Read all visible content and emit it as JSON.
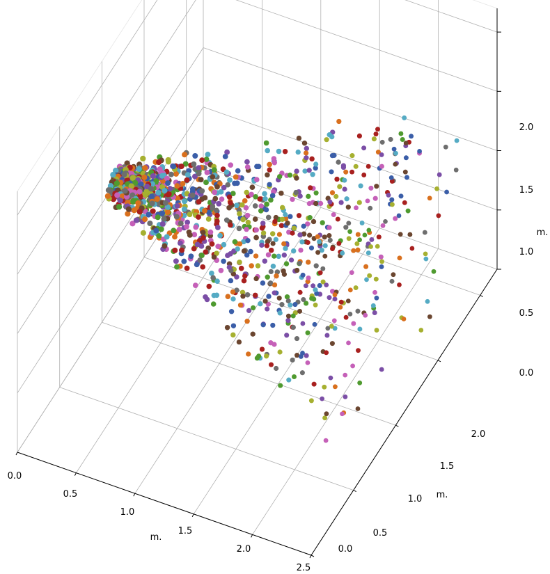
{
  "chart_data": {
    "type": "scatter",
    "projection": "3d",
    "title": "",
    "xlabel": "m.",
    "ylabel": "m.",
    "zlabel": "m.",
    "xlim": [
      0,
      2.5
    ],
    "ylim": [
      0,
      2.2
    ],
    "zlim": [
      0,
      2.2
    ],
    "xticks": [
      "0.0",
      "0.5",
      "1.0",
      "1.5",
      "2.0",
      "2.5"
    ],
    "yticks": [
      "0.0",
      "0.5",
      "1.0",
      "1.5",
      "2.0"
    ],
    "zticks": [
      "0.0",
      "0.5",
      "1.0",
      "1.5",
      "2.0"
    ],
    "grid": true,
    "legend": "none",
    "palette": [
      "#1f77b4",
      "#ff7f0e",
      "#2ca02c",
      "#d62728",
      "#9467bd",
      "#8c564b",
      "#e377c2",
      "#7f7f7f",
      "#bcbd22",
      "#17becf"
    ],
    "marker_colors": [
      "#3b5ea8",
      "#d9701e",
      "#4f9a2f",
      "#a8201f",
      "#7b4ea6",
      "#6b4630",
      "#c560b8",
      "#6e6e6e",
      "#a6b030",
      "#55abc4"
    ],
    "cluster_center": [
      0.05,
      1.1,
      1.1
    ],
    "point_count": 1500,
    "points_per_color": 150
  }
}
